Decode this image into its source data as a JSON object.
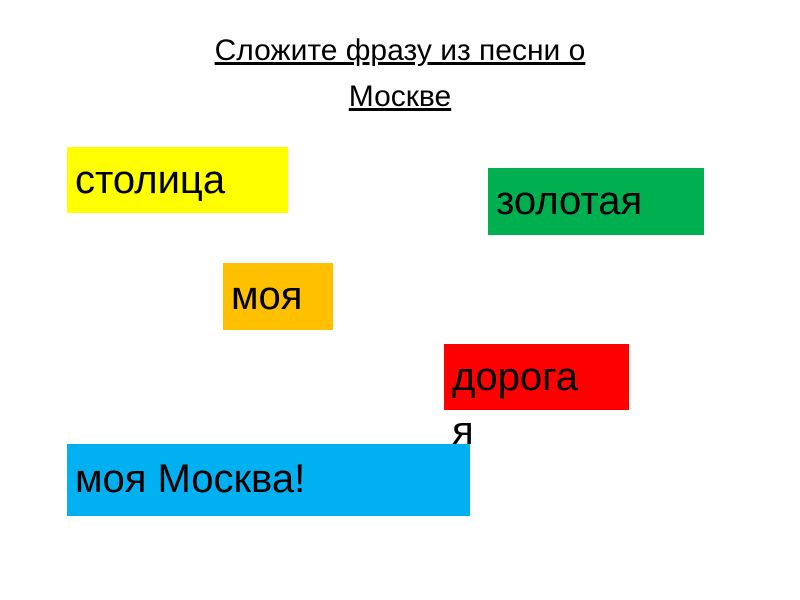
{
  "slide": {
    "title_line1": "Сложите фразу из песни о",
    "title_line2": "Москве"
  },
  "cards": [
    {
      "text": "столица",
      "color": "#FFFF00"
    },
    {
      "text": "золотая",
      "color": "#00B050"
    },
    {
      "text": "моя",
      "color": "#FFC000"
    },
    {
      "text": "дорога",
      "overflow_text": "я",
      "color": "#FF0000"
    },
    {
      "text": "моя Москва!",
      "color": "#00B0F0"
    }
  ]
}
